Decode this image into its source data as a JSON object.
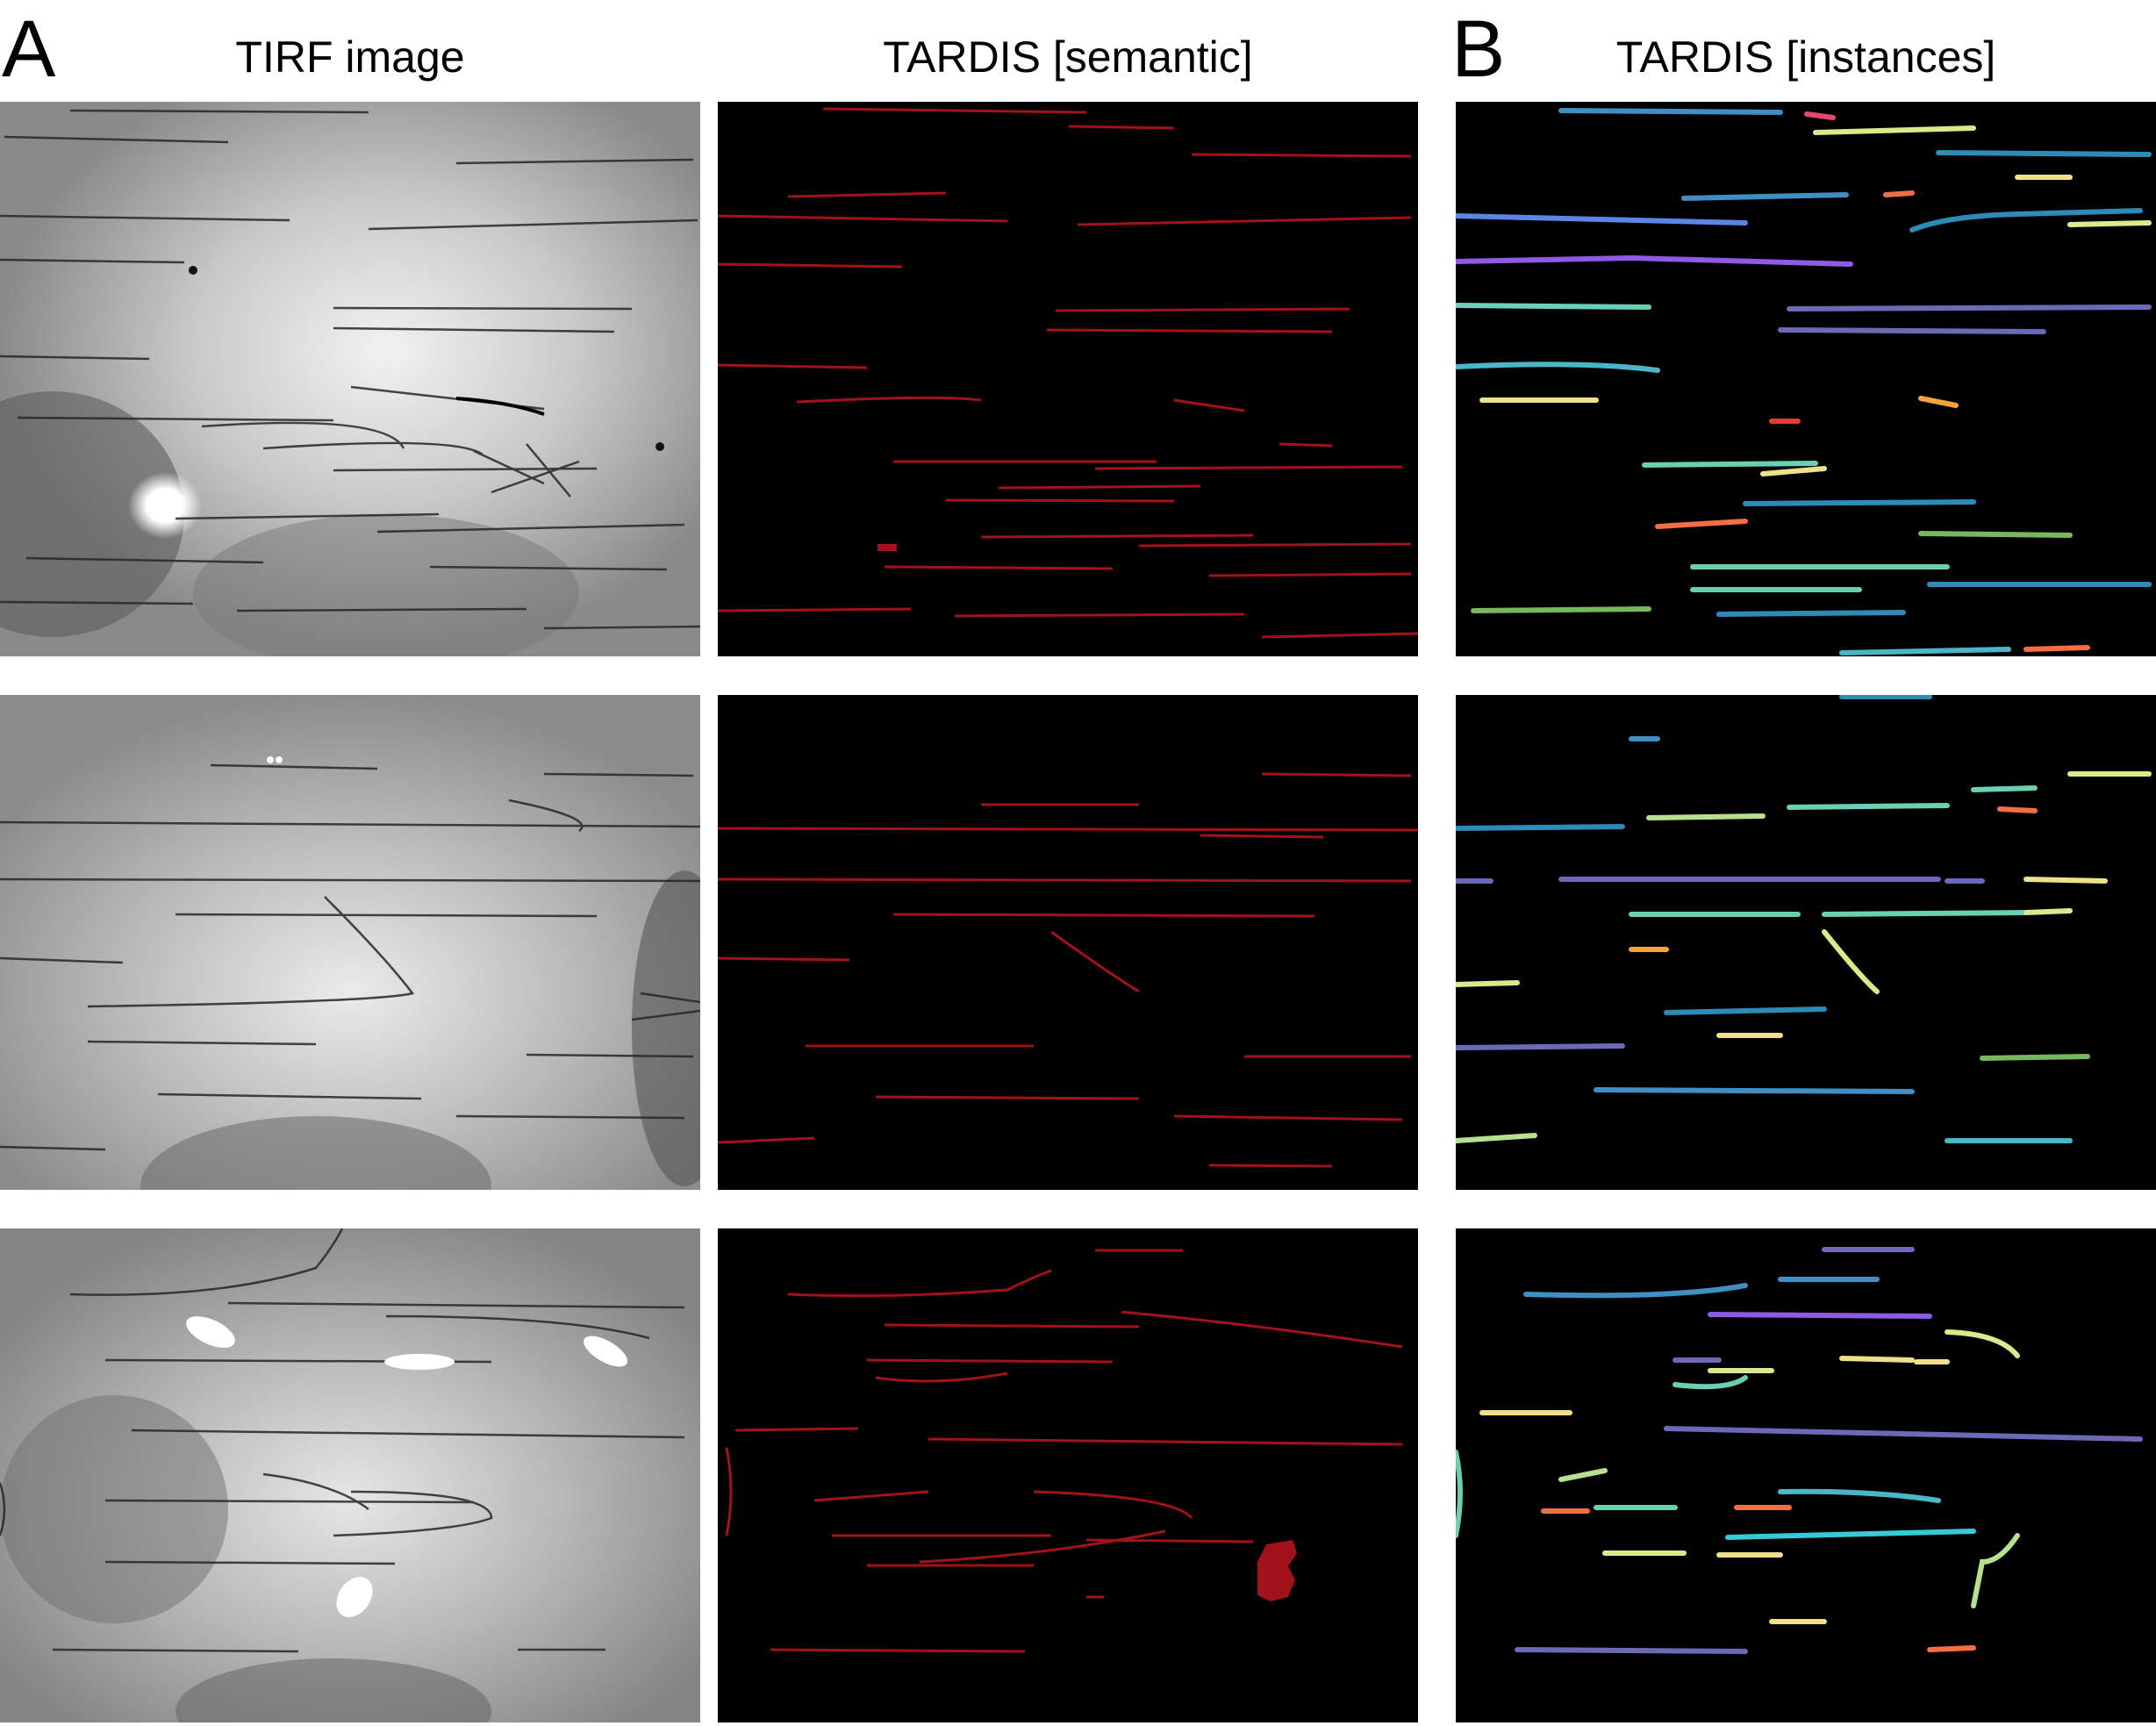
{
  "panels": {
    "a": "A",
    "b": "B"
  },
  "columns": {
    "tirf": "TIRF image",
    "semantic": "TARDIS [semantic]",
    "instances": "TARDIS [instances]"
  },
  "colors": {
    "semantic_filament": "#a3121a",
    "tirf_filament": "#262626",
    "instance_palette": [
      "#3f8fc4",
      "#dce98a",
      "#e34a6f",
      "#f46d43",
      "#6ad0b5",
      "#5b86e6",
      "#8e5ae6",
      "#49b7c7",
      "#f4a43a",
      "#e83b2c",
      "#6c69b8",
      "#2d8bb8",
      "#76b85c",
      "#efe08a",
      "#37c9d6",
      "#b8e08f"
    ]
  }
}
